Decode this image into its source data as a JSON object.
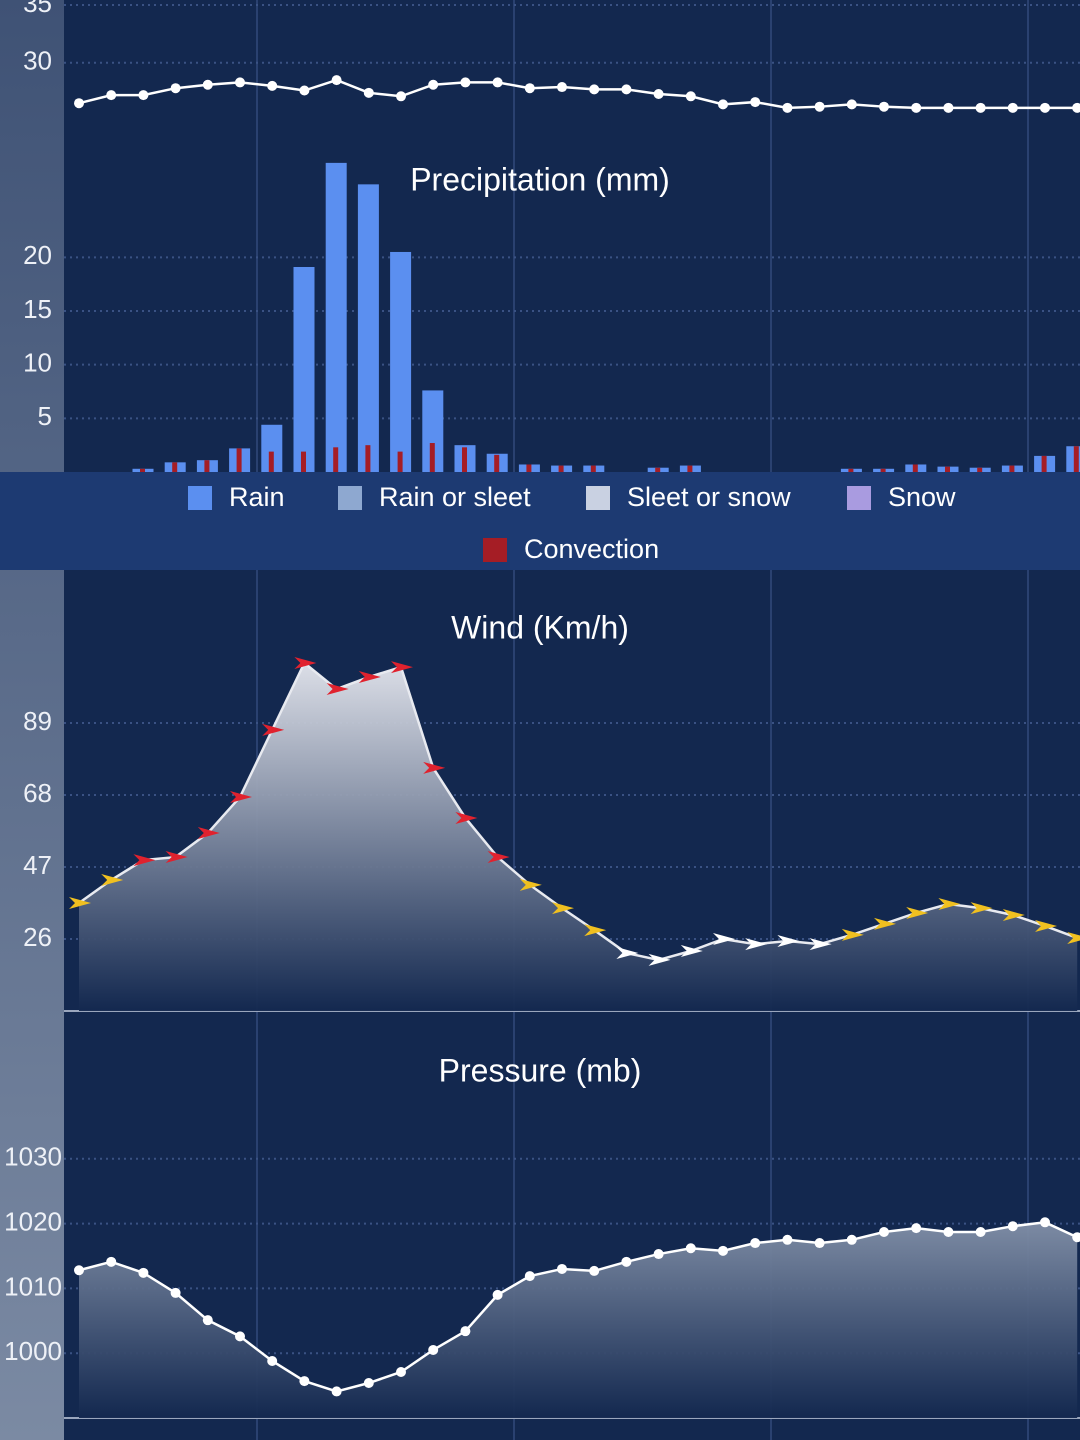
{
  "chart_data": [
    {
      "type": "line",
      "ylim": [
        26,
        35
      ],
      "yticks": [
        30,
        35
      ],
      "grid": true,
      "color": "#ffffff",
      "values": [
        26.5,
        27.2,
        27.2,
        27.8,
        28.1,
        28.3,
        28.0,
        27.6,
        28.5,
        27.4,
        27.1,
        28.1,
        28.3,
        28.3,
        27.8,
        27.9,
        27.7,
        27.7,
        27.3,
        27.1,
        26.4,
        26.6,
        26.1,
        26.2,
        26.4,
        26.2,
        26.1,
        26.1,
        26.1,
        26.1,
        26.1,
        26.1
      ]
    },
    {
      "type": "bar",
      "title": "Precipitation (mm)",
      "ylim": [
        0,
        30
      ],
      "yticks": [
        5,
        10,
        15,
        20
      ],
      "grid": true,
      "series": [
        {
          "name": "Rain",
          "color": "#5b8ff0",
          "values": [
            0.3,
            0.9,
            1.1,
            2.2,
            4.4,
            19.1,
            28.8,
            26.8,
            20.5,
            7.6,
            2.5,
            1.7,
            0.7,
            0.6,
            0.6,
            0,
            0.4,
            0.6,
            0,
            0,
            0,
            0,
            0.3,
            0.3,
            0.7,
            0.5,
            0.4,
            0.6,
            1.5,
            2.4
          ]
        },
        {
          "name": "Rain or sleet",
          "color": "#8ea8d0",
          "values": [
            0,
            0,
            0,
            0,
            0,
            0,
            0,
            0,
            0,
            0,
            0,
            0,
            0,
            0,
            0,
            0,
            0,
            0,
            0,
            0,
            0,
            0,
            0,
            0,
            0,
            0,
            0,
            0,
            0,
            0
          ]
        },
        {
          "name": "Sleet or snow",
          "color": "#c9d1e2",
          "values": [
            0,
            0,
            0,
            0,
            0,
            0,
            0,
            0,
            0,
            0,
            0,
            0,
            0,
            0,
            0,
            0,
            0,
            0,
            0,
            0,
            0,
            0,
            0,
            0,
            0,
            0,
            0,
            0,
            0,
            0
          ]
        },
        {
          "name": "Snow",
          "color": "#a99be0",
          "values": [
            0,
            0,
            0,
            0,
            0,
            0,
            0,
            0,
            0,
            0,
            0,
            0,
            0,
            0,
            0,
            0,
            0,
            0,
            0,
            0,
            0,
            0,
            0,
            0,
            0,
            0,
            0,
            0,
            0,
            0
          ]
        },
        {
          "name": "Convection",
          "color": "#a51d25",
          "values": [
            0.3,
            0.9,
            1.1,
            2.2,
            1.9,
            1.9,
            2.3,
            2.5,
            1.9,
            2.7,
            2.3,
            1.6,
            0.7,
            0.6,
            0.6,
            0,
            0.4,
            0.6,
            0,
            0,
            0,
            0,
            0.3,
            0.3,
            0.7,
            0.5,
            0.4,
            0.6,
            1.5,
            2.4
          ]
        }
      ]
    },
    {
      "type": "area",
      "title": "Wind (Km/h)",
      "ylim": [
        5,
        110
      ],
      "yticks": [
        26,
        47,
        68,
        89
      ],
      "grid": true,
      "color": "#e8eaf0",
      "values": [
        36.5,
        43.2,
        49.0,
        49.9,
        56.9,
        67.4,
        87.0,
        106.5,
        98.9,
        102.4,
        105.3,
        75.9,
        61.3,
        49.9,
        41.8,
        35.0,
        28.6,
        21.9,
        19.9,
        22.5,
        26.0,
        24.5,
        25.4,
        24.5,
        27.2,
        30.4,
        33.6,
        36.2,
        35.0,
        33.0,
        29.8,
        26.3
      ],
      "marker_colors": [
        "#f0c020",
        "#f0c020",
        "#e0222e",
        "#e0222e",
        "#e0222e",
        "#e0222e",
        "#e0222e",
        "#e0222e",
        "#e0222e",
        "#e0222e",
        "#e0222e",
        "#e0222e",
        "#e0222e",
        "#e0222e",
        "#f0c020",
        "#f0c020",
        "#f0c020",
        "#ffffff",
        "#ffffff",
        "#ffffff",
        "#ffffff",
        "#ffffff",
        "#ffffff",
        "#ffffff",
        "#f0c020",
        "#f0c020",
        "#f0c020",
        "#f0c020",
        "#f0c020",
        "#f0c020",
        "#f0c020",
        "#f0c020"
      ]
    },
    {
      "type": "area",
      "title": "Pressure (mb)",
      "ylim": [
        990,
        1040
      ],
      "yticks": [
        1000,
        1010,
        1020,
        1030
      ],
      "grid": true,
      "color": "#ffffff",
      "values": [
        1012.8,
        1014.1,
        1012.4,
        1009.3,
        1005.1,
        1002.6,
        998.8,
        995.7,
        994.1,
        995.4,
        997.1,
        1000.5,
        1003.4,
        1009.0,
        1011.9,
        1013.0,
        1012.7,
        1014.1,
        1015.3,
        1016.2,
        1015.8,
        1017.0,
        1017.5,
        1017.0,
        1017.5,
        1018.7,
        1019.3,
        1018.7,
        1018.7,
        1019.6,
        1020.2,
        1017.9
      ]
    }
  ]
}
